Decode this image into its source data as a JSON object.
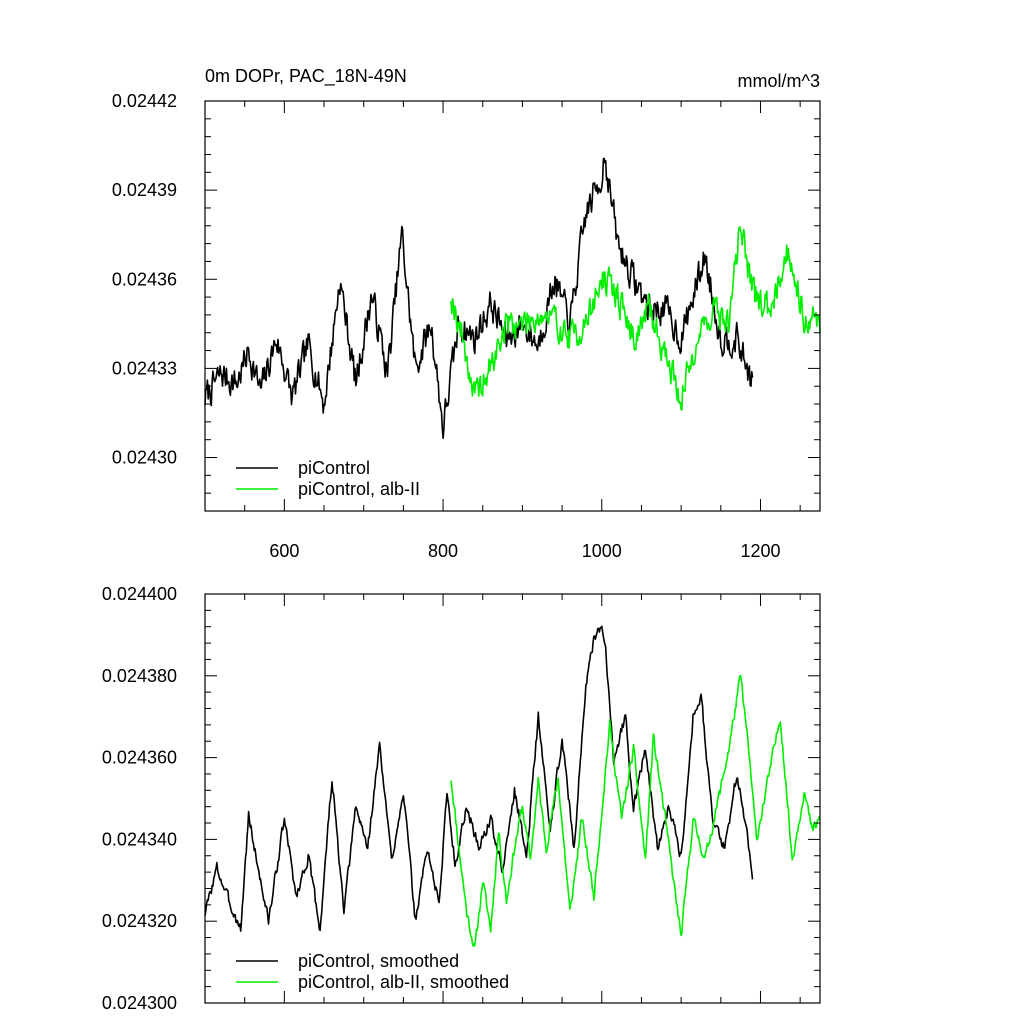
{
  "chart_data": [
    {
      "type": "line",
      "title": "0m DOPr, PAC_18N-49N",
      "units": "mmol/m^3",
      "xlim": [
        500,
        1275
      ],
      "ylim": [
        0.024282,
        0.02442
      ],
      "x_ticks": [
        600,
        800,
        1000,
        1200
      ],
      "x_tick_labels": [
        "600",
        "800",
        "1000",
        "1200"
      ],
      "y_ticks": [
        0.0243,
        0.02433,
        0.02436,
        0.02439,
        0.02442
      ],
      "y_tick_labels": [
        "0.02430",
        "0.02433",
        "0.02436",
        "0.02439",
        "0.02442"
      ],
      "legend_position": "bottom-left",
      "series": [
        {
          "name": "piControl",
          "color": "#000000",
          "x_start": 500,
          "x_end": 1190,
          "anchor_x": [
            500,
            520,
            540,
            555,
            570,
            590,
            610,
            630,
            650,
            670,
            690,
            710,
            730,
            748,
            765,
            785,
            800,
            820,
            840,
            860,
            880,
            900,
            920,
            940,
            960,
            980,
            1000,
            1003,
            1020,
            1040,
            1060,
            1080,
            1100,
            1130,
            1150,
            1170,
            1190
          ],
          "anchor_y": [
            0.02432,
            0.024328,
            0.024325,
            0.024336,
            0.024322,
            0.02434,
            0.02432,
            0.024338,
            0.024318,
            0.02436,
            0.024325,
            0.024355,
            0.024328,
            0.024375,
            0.02433,
            0.024345,
            0.02431,
            0.024345,
            0.02434,
            0.024352,
            0.02434,
            0.024345,
            0.024338,
            0.02436,
            0.024345,
            0.024382,
            0.024395,
            0.024403,
            0.024372,
            0.02436,
            0.02435,
            0.02435,
            0.02434,
            0.024368,
            0.02434,
            0.02434,
            0.024325
          ],
          "noise": 4.5e-06,
          "seed": 7
        },
        {
          "name": "piControl, alb-II",
          "color": "#00ee00",
          "x_start": 810,
          "x_end": 1275,
          "anchor_x": [
            810,
            825,
            840,
            860,
            880,
            900,
            920,
            940,
            960,
            980,
            1000,
            1020,
            1040,
            1060,
            1080,
            1100,
            1120,
            1140,
            1160,
            1175,
            1190,
            1210,
            1235,
            1255,
            1275
          ],
          "anchor_y": [
            0.024355,
            0.02434,
            0.02432,
            0.02433,
            0.024345,
            0.024345,
            0.024348,
            0.024346,
            0.02434,
            0.024345,
            0.02436,
            0.024355,
            0.02434,
            0.02435,
            0.024335,
            0.02432,
            0.02434,
            0.02435,
            0.024345,
            0.02438,
            0.024355,
            0.02435,
            0.02437,
            0.024348,
            0.024345
          ],
          "noise": 4.5e-06,
          "seed": 19
        }
      ]
    },
    {
      "type": "line",
      "xlim": [
        500,
        1275
      ],
      "ylim": [
        0.0243,
        0.0244
      ],
      "x_ticks": [
        600,
        800,
        1000,
        1200
      ],
      "y_ticks": [
        0.0243,
        0.02432,
        0.02434,
        0.02436,
        0.02438,
        0.0244
      ],
      "y_tick_labels": [
        "0.024300",
        "0.024320",
        "0.024340",
        "0.024360",
        "0.024380",
        "0.024400"
      ],
      "legend_position": "bottom-left",
      "series": [
        {
          "name": "piControl, smoothed",
          "color": "#000000",
          "x_start": 500,
          "x_end": 1190,
          "anchor_x": [
            500,
            515,
            530,
            545,
            555,
            565,
            580,
            600,
            615,
            630,
            645,
            660,
            675,
            690,
            705,
            720,
            735,
            750,
            765,
            780,
            795,
            805,
            815,
            830,
            845,
            860,
            875,
            890,
            905,
            920,
            935,
            950,
            965,
            980,
            990,
            1000,
            1005,
            1015,
            1030,
            1040,
            1055,
            1070,
            1085,
            1100,
            1115,
            1125,
            1140,
            1155,
            1170,
            1180,
            1190
          ],
          "anchor_y": [
            0.024322,
            0.024333,
            0.024325,
            0.024318,
            0.024346,
            0.024335,
            0.02432,
            0.024345,
            0.024326,
            0.024336,
            0.024318,
            0.024355,
            0.024322,
            0.024348,
            0.024338,
            0.024363,
            0.024335,
            0.024352,
            0.02432,
            0.024338,
            0.024324,
            0.024352,
            0.024334,
            0.024348,
            0.024338,
            0.024345,
            0.024332,
            0.024352,
            0.024336,
            0.02437,
            0.024342,
            0.024365,
            0.024338,
            0.024378,
            0.024388,
            0.024392,
            0.024386,
            0.02436,
            0.02437,
            0.024348,
            0.024362,
            0.024338,
            0.024348,
            0.024336,
            0.02437,
            0.024376,
            0.024344,
            0.024338,
            0.024356,
            0.024345,
            0.024332
          ],
          "noise": 1.2e-06,
          "seed": 3
        },
        {
          "name": "piControl, alb-II, smoothed",
          "color": "#00ee00",
          "x_start": 810,
          "x_end": 1275,
          "anchor_x": [
            810,
            820,
            830,
            840,
            850,
            860,
            870,
            880,
            890,
            900,
            910,
            920,
            930,
            945,
            960,
            975,
            990,
            1010,
            1025,
            1040,
            1055,
            1065,
            1080,
            1100,
            1115,
            1130,
            1145,
            1160,
            1175,
            1185,
            1195,
            1210,
            1225,
            1240,
            1255,
            1265,
            1275
          ],
          "anchor_y": [
            0.024355,
            0.024338,
            0.024322,
            0.024313,
            0.02433,
            0.024318,
            0.024342,
            0.024325,
            0.024338,
            0.024348,
            0.024335,
            0.024354,
            0.024338,
            0.024355,
            0.024322,
            0.024345,
            0.024326,
            0.024368,
            0.024345,
            0.024362,
            0.024335,
            0.024365,
            0.024345,
            0.024316,
            0.024345,
            0.024335,
            0.024348,
            0.024362,
            0.02438,
            0.024362,
            0.02434,
            0.024355,
            0.02437,
            0.024335,
            0.024352,
            0.024342,
            0.024345
          ],
          "noise": 1.2e-06,
          "seed": 11
        }
      ]
    }
  ]
}
